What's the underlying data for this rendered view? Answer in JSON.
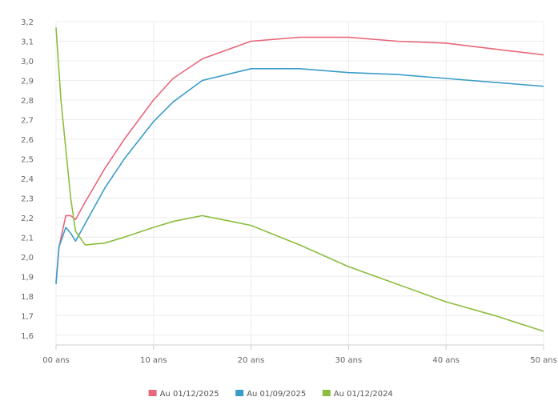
{
  "chart_data": {
    "type": "line",
    "xlabel": "",
    "ylabel": "",
    "xlim": [
      0,
      50
    ],
    "ylim": [
      1.55,
      3.2
    ],
    "grid": true,
    "legend_position": "bottom-center",
    "x_ticks": [
      {
        "value": 0,
        "label": "00 ans"
      },
      {
        "value": 10,
        "label": "10 ans"
      },
      {
        "value": 20,
        "label": "20 ans"
      },
      {
        "value": 30,
        "label": "30 ans"
      },
      {
        "value": 40,
        "label": "40 ans"
      },
      {
        "value": 50,
        "label": "50 ans"
      }
    ],
    "y_ticks": [
      {
        "value": 1.6,
        "label": "1,6"
      },
      {
        "value": 1.7,
        "label": "1,7"
      },
      {
        "value": 1.8,
        "label": "1,8"
      },
      {
        "value": 1.9,
        "label": "1,9"
      },
      {
        "value": 2.0,
        "label": "2,0"
      },
      {
        "value": 2.1,
        "label": "2,1"
      },
      {
        "value": 2.2,
        "label": "2,2"
      },
      {
        "value": 2.3,
        "label": "2,3"
      },
      {
        "value": 2.4,
        "label": "2,4"
      },
      {
        "value": 2.5,
        "label": "2,5"
      },
      {
        "value": 2.6,
        "label": "2,6"
      },
      {
        "value": 2.7,
        "label": "2,7"
      },
      {
        "value": 2.8,
        "label": "2,8"
      },
      {
        "value": 2.9,
        "label": "2,9"
      },
      {
        "value": 3.0,
        "label": "3,0"
      },
      {
        "value": 3.1,
        "label": "3,1"
      },
      {
        "value": 3.2,
        "label": "3,2"
      }
    ],
    "series": [
      {
        "name": "Au 01/12/2025",
        "color": "#e8677a",
        "points": [
          [
            0,
            1.87
          ],
          [
            0.3,
            2.05
          ],
          [
            1,
            2.21
          ],
          [
            1.5,
            2.21
          ],
          [
            2,
            2.19
          ],
          [
            3,
            2.28
          ],
          [
            5,
            2.45
          ],
          [
            7,
            2.6
          ],
          [
            10,
            2.8
          ],
          [
            12,
            2.91
          ],
          [
            15,
            3.01
          ],
          [
            20,
            3.1
          ],
          [
            25,
            3.12
          ],
          [
            30,
            3.12
          ],
          [
            35,
            3.1
          ],
          [
            40,
            3.09
          ],
          [
            45,
            3.06
          ],
          [
            50,
            3.03
          ]
        ]
      },
      {
        "name": "Au 01/09/2025",
        "color": "#3a9cc9",
        "points": [
          [
            0,
            1.86
          ],
          [
            0.3,
            2.05
          ],
          [
            1,
            2.15
          ],
          [
            1.5,
            2.12
          ],
          [
            2,
            2.08
          ],
          [
            3,
            2.17
          ],
          [
            5,
            2.35
          ],
          [
            7,
            2.5
          ],
          [
            10,
            2.69
          ],
          [
            12,
            2.79
          ],
          [
            15,
            2.9
          ],
          [
            20,
            2.96
          ],
          [
            25,
            2.96
          ],
          [
            30,
            2.94
          ],
          [
            35,
            2.93
          ],
          [
            40,
            2.91
          ],
          [
            45,
            2.89
          ],
          [
            50,
            2.87
          ]
        ]
      },
      {
        "name": "Au 01/12/2024",
        "color": "#8cbd3f",
        "points": [
          [
            0,
            3.17
          ],
          [
            0.5,
            2.8
          ],
          [
            1,
            2.55
          ],
          [
            1.5,
            2.3
          ],
          [
            2,
            2.13
          ],
          [
            3,
            2.06
          ],
          [
            5,
            2.07
          ],
          [
            7,
            2.1
          ],
          [
            10,
            2.15
          ],
          [
            12,
            2.18
          ],
          [
            15,
            2.21
          ],
          [
            18,
            2.18
          ],
          [
            20,
            2.16
          ],
          [
            25,
            2.06
          ],
          [
            30,
            1.95
          ],
          [
            35,
            1.86
          ],
          [
            40,
            1.77
          ],
          [
            45,
            1.7
          ],
          [
            50,
            1.62
          ]
        ]
      }
    ]
  }
}
